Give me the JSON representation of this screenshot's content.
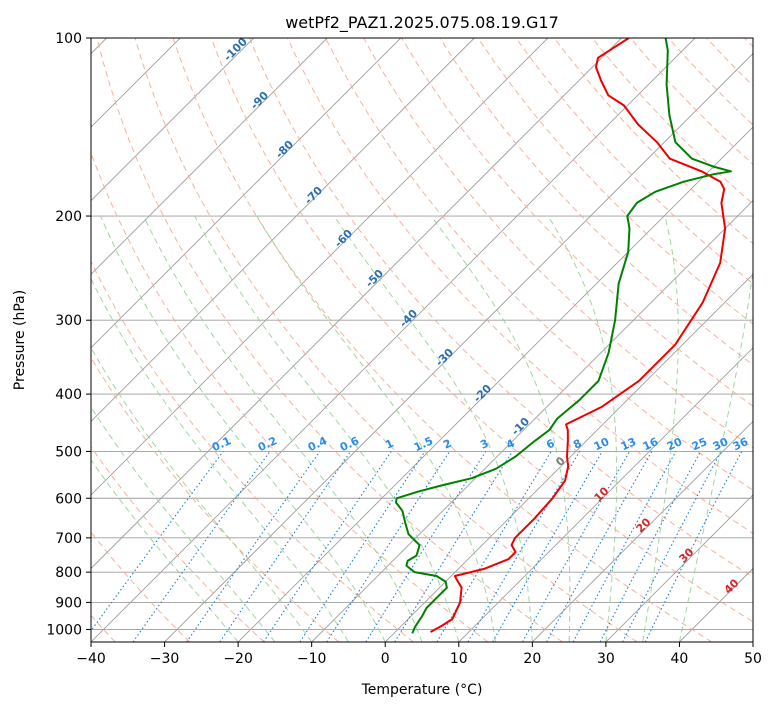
{
  "chart_data": {
    "type": "line",
    "title": "wetPf2_PAZ1.2025.075.08.19.G17",
    "xlabel": "Temperature (°C)",
    "ylabel": "Pressure (hPa)",
    "xlim": [
      -40,
      50
    ],
    "ylim": [
      1050,
      100
    ],
    "y_scale": "log",
    "x_ticks": [
      -40,
      -30,
      -20,
      -10,
      0,
      10,
      20,
      30,
      40,
      50
    ],
    "y_ticks": [
      100,
      200,
      300,
      400,
      500,
      600,
      700,
      800,
      900,
      1000
    ],
    "grid": true,
    "skew": 45,
    "series": [
      {
        "name": "",
        "color": "#ee0000",
        "points": [
          [
            4.8,
            1010
          ],
          [
            5.5,
            985
          ],
          [
            6.0,
            960
          ],
          [
            4.8,
            900
          ],
          [
            3.0,
            850
          ],
          [
            1.0,
            820
          ],
          [
            0.5,
            812
          ],
          [
            3.5,
            790
          ],
          [
            5.5,
            760
          ],
          [
            5.5,
            740
          ],
          [
            4.0,
            720
          ],
          [
            3.5,
            700
          ],
          [
            3.5,
            650
          ],
          [
            3.2,
            600
          ],
          [
            2.5,
            560
          ],
          [
            1.0,
            530
          ],
          [
            -0.5,
            510
          ],
          [
            -2.5,
            480
          ],
          [
            -4.0,
            460
          ],
          [
            -5.0,
            450
          ],
          [
            -2.5,
            420
          ],
          [
            -1.0,
            380
          ],
          [
            -1.0,
            330
          ],
          [
            -3.0,
            280
          ],
          [
            -6.0,
            240
          ],
          [
            -10.0,
            210
          ],
          [
            -14.0,
            190
          ],
          [
            -15.5,
            180
          ],
          [
            -17.0,
            175
          ],
          [
            -21.0,
            168
          ],
          [
            -27.0,
            160
          ],
          [
            -31.0,
            150
          ],
          [
            -36.0,
            140
          ],
          [
            -40.5,
            130
          ],
          [
            -44.0,
            125
          ],
          [
            -47.0,
            118
          ],
          [
            -49.5,
            112
          ],
          [
            -50.5,
            108
          ],
          [
            -49.0,
            100
          ]
        ]
      },
      {
        "name": "",
        "color": "#008000",
        "points": [
          [
            2.5,
            1015
          ],
          [
            2.0,
            990
          ],
          [
            1.5,
            950
          ],
          [
            1.0,
            920
          ],
          [
            1.0,
            880
          ],
          [
            1.0,
            850
          ],
          [
            0.0,
            830
          ],
          [
            -2.0,
            812
          ],
          [
            -5.5,
            800
          ],
          [
            -7.5,
            780
          ],
          [
            -8.0,
            765
          ],
          [
            -7.5,
            750
          ],
          [
            -8.5,
            720
          ],
          [
            -11.5,
            690
          ],
          [
            -13.5,
            660
          ],
          [
            -15.5,
            630
          ],
          [
            -17.5,
            610
          ],
          [
            -18.0,
            600
          ],
          [
            -16.0,
            585
          ],
          [
            -13.5,
            570
          ],
          [
            -10.5,
            555
          ],
          [
            -8.5,
            535
          ],
          [
            -7.5,
            510
          ],
          [
            -7.0,
            480
          ],
          [
            -6.5,
            460
          ],
          [
            -7.0,
            440
          ],
          [
            -6.5,
            410
          ],
          [
            -6.5,
            380
          ],
          [
            -9.0,
            340
          ],
          [
            -12.5,
            300
          ],
          [
            -17.0,
            260
          ],
          [
            -20.0,
            230
          ],
          [
            -23.0,
            210
          ],
          [
            -25.0,
            200
          ],
          [
            -25.5,
            190
          ],
          [
            -24.5,
            182
          ],
          [
            -22.0,
            175
          ],
          [
            -19.0,
            170
          ],
          [
            -17.0,
            168
          ],
          [
            -20.0,
            165
          ],
          [
            -24.0,
            160
          ],
          [
            -28.5,
            150
          ],
          [
            -33.0,
            135
          ],
          [
            -37.5,
            120
          ],
          [
            -42.0,
            105
          ],
          [
            -44.0,
            100
          ]
        ]
      }
    ]
  },
  "isobar_labels": {
    "dry_adiabat": [
      "-100",
      "-90",
      "-80",
      "-70",
      "-60",
      "-50",
      "-40",
      "-30",
      "-20",
      "-10"
    ],
    "mixing_ratio": [
      "0.1",
      "0.2",
      "0.4",
      "0.6",
      "1",
      "1.5",
      "2",
      "3",
      "4",
      "6",
      "8",
      "10",
      "13",
      "16",
      "20",
      "25",
      "30",
      "36"
    ],
    "moist_adiabat": [
      "0",
      "10",
      "20",
      "30",
      "40"
    ]
  },
  "colors": {
    "temperature": "#ee0000",
    "dewpoint": "#008000",
    "dry_adiabat_line": "#f4a58a",
    "moist_adiabat_line": "#8fcf8f",
    "mixing_ratio_line": "#1e7fd8",
    "isotherm_line": "#9e9e9e",
    "dry_label": "#2a6fb0",
    "mixing_label": "#2a8ee8",
    "moist_label": "#d62728",
    "zero_label": "#7f7f7f"
  }
}
